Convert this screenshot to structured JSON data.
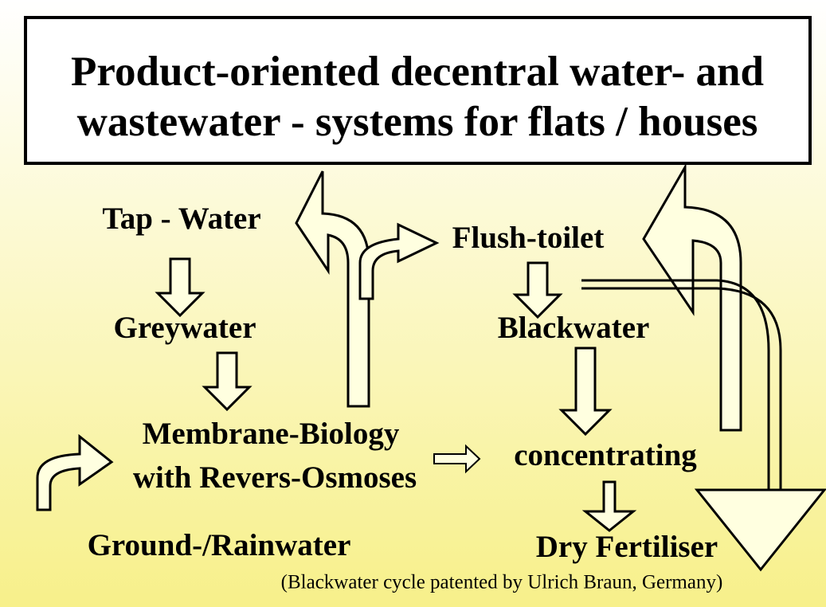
{
  "header": {
    "title": [
      "Product-oriented decentral water- and",
      "wastewater - systems for flats / houses"
    ]
  },
  "nodes": [
    {
      "label": "Tap - Water"
    },
    {
      "label": "Greywater"
    },
    {
      "label": "Membrane-Biology"
    },
    {
      "label": "with Revers-Osmoses"
    },
    {
      "label": "Ground-/Rainwater"
    },
    {
      "label": "Flush-toilet"
    },
    {
      "label": "Blackwater"
    },
    {
      "label": "concentrating"
    },
    {
      "label": "Dry Fertiliser"
    }
  ],
  "footnote": "(Blackwater cycle patented by Ulrich Braun, Germany)"
}
